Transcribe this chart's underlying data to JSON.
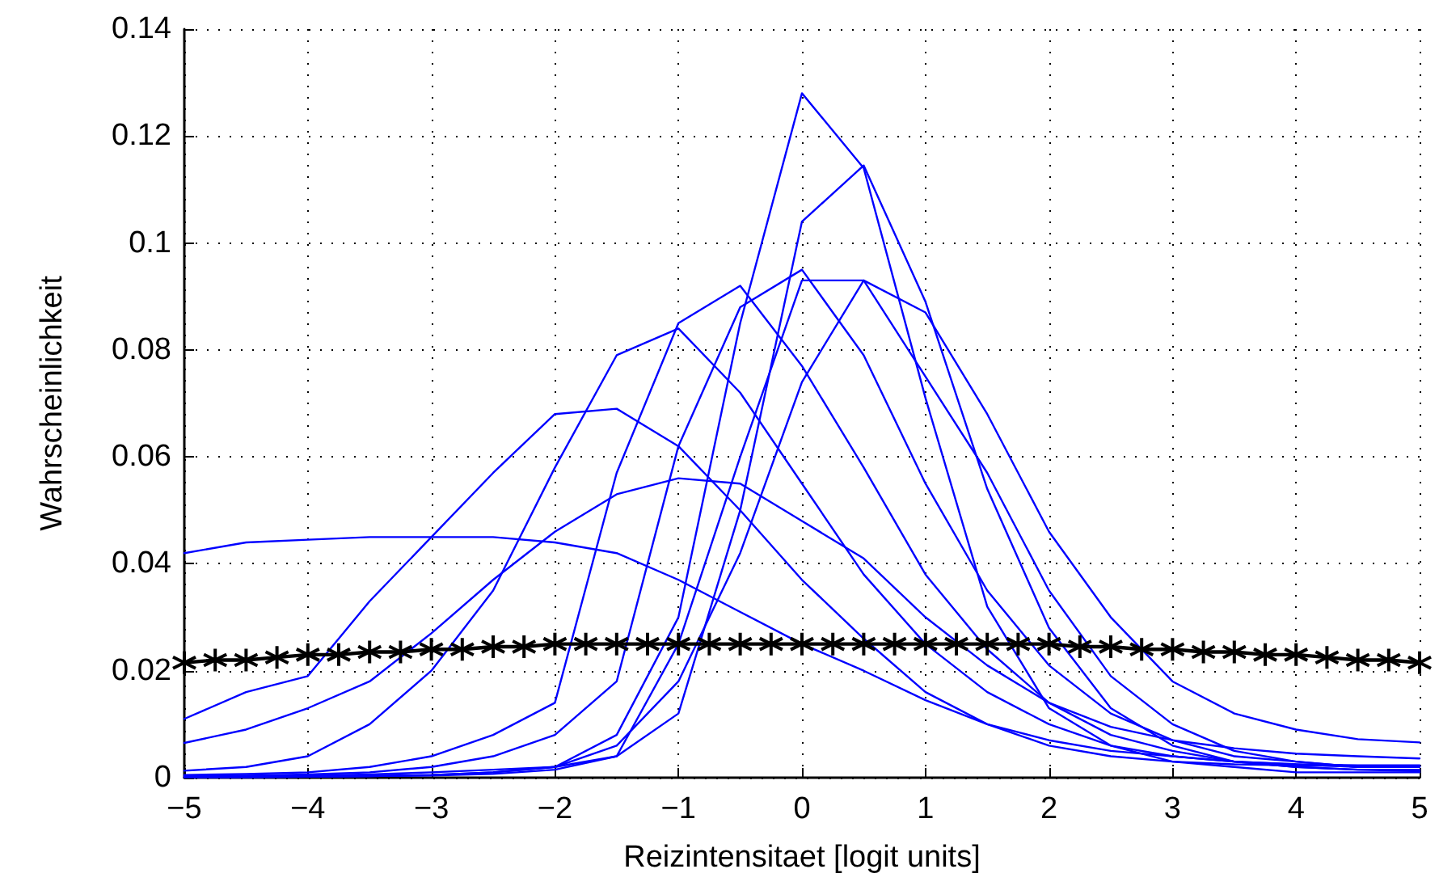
{
  "chart_data": {
    "type": "line",
    "xlabel": "Reizintensitaet [logit units]",
    "ylabel": "Wahrscheinlichkeit",
    "x": [
      -5,
      -4.5,
      -4,
      -3.5,
      -3,
      -2.5,
      -2,
      -1.5,
      -1,
      -0.5,
      0,
      0.5,
      1,
      1.5,
      2,
      2.5,
      3,
      3.5,
      4,
      4.5,
      5
    ],
    "xlim": [
      -5,
      5
    ],
    "xticks": [
      {
        "value": -5,
        "label": "−5"
      },
      {
        "value": -4,
        "label": "−4"
      },
      {
        "value": -3,
        "label": "−3"
      },
      {
        "value": -2,
        "label": "−2"
      },
      {
        "value": -1,
        "label": "−1"
      },
      0,
      1,
      2,
      3,
      4,
      5
    ],
    "ylim": [
      0,
      0.14
    ],
    "yticks": [
      0,
      0.02,
      0.04,
      0.06,
      0.08,
      0.1,
      0.12,
      0.14
    ],
    "grid": true,
    "line_style": "solid",
    "series": [
      {
        "color": "#0000ff",
        "marker": "none",
        "values": [
          0.042,
          0.044,
          0.0445,
          0.045,
          0.045,
          0.045,
          0.044,
          0.042,
          0.037,
          0.031,
          0.025,
          0.02,
          0.0145,
          0.01,
          0.007,
          0.005,
          0.004,
          0.003,
          0.0025,
          0.0023,
          0.0023
        ]
      },
      {
        "color": "#0000ff",
        "marker": "none",
        "values": [
          0.0065,
          0.009,
          0.013,
          0.018,
          0.027,
          0.037,
          0.046,
          0.053,
          0.056,
          0.055,
          0.048,
          0.041,
          0.03,
          0.021,
          0.014,
          0.0095,
          0.007,
          0.0055,
          0.0045,
          0.004,
          0.0036
        ]
      },
      {
        "color": "#0000ff",
        "marker": "none",
        "values": [
          0.011,
          0.016,
          0.019,
          0.033,
          0.045,
          0.057,
          0.068,
          0.069,
          0.062,
          0.05,
          0.037,
          0.026,
          0.016,
          0.01,
          0.006,
          0.004,
          0.003,
          0.0025,
          0.0023,
          0.0022,
          0.0022
        ]
      },
      {
        "color": "#0000ff",
        "marker": "none",
        "values": [
          0.0013,
          0.002,
          0.004,
          0.01,
          0.02,
          0.035,
          0.058,
          0.079,
          0.084,
          0.072,
          0.055,
          0.038,
          0.025,
          0.016,
          0.01,
          0.006,
          0.004,
          0.003,
          0.0025,
          0.002,
          0.002
        ]
      },
      {
        "color": "#0000ff",
        "marker": "none",
        "values": [
          0.0005,
          0.0007,
          0.001,
          0.002,
          0.004,
          0.008,
          0.014,
          0.057,
          0.085,
          0.092,
          0.077,
          0.058,
          0.038,
          0.024,
          0.014,
          0.008,
          0.005,
          0.003,
          0.002,
          0.0015,
          0.0012
        ]
      },
      {
        "color": "#0000ff",
        "marker": "none",
        "values": [
          0.0003,
          0.0004,
          0.0006,
          0.001,
          0.002,
          0.004,
          0.008,
          0.018,
          0.062,
          0.088,
          0.095,
          0.079,
          0.055,
          0.035,
          0.021,
          0.012,
          0.007,
          0.004,
          0.003,
          0.002,
          0.002
        ]
      },
      {
        "color": "#0000ff",
        "marker": "none",
        "values": [
          0.0001,
          0.0001,
          0.0002,
          0.0003,
          0.0005,
          0.001,
          0.002,
          0.008,
          0.03,
          0.085,
          0.128,
          0.114,
          0.071,
          0.032,
          0.013,
          0.006,
          0.003,
          0.002,
          0.001,
          0.001,
          0.001
        ]
      },
      {
        "color": "#0000ff",
        "marker": "none",
        "values": [
          0.0001,
          0.0001,
          0.0002,
          0.0003,
          0.0005,
          0.001,
          0.002,
          0.004,
          0.012,
          0.05,
          0.104,
          0.1145,
          0.089,
          0.054,
          0.028,
          0.013,
          0.006,
          0.003,
          0.002,
          0.0015,
          0.0015
        ]
      },
      {
        "color": "#0000ff",
        "marker": "none",
        "values": [
          0.0001,
          0.0001,
          0.0002,
          0.0003,
          0.0004,
          0.0007,
          0.0015,
          0.004,
          0.025,
          0.06,
          0.093,
          0.093,
          0.075,
          0.057,
          0.035,
          0.019,
          0.01,
          0.005,
          0.003,
          0.002,
          0.002
        ]
      },
      {
        "color": "#0000ff",
        "marker": "none",
        "values": [
          0.0003,
          0.0003,
          0.0004,
          0.0006,
          0.001,
          0.0015,
          0.002,
          0.006,
          0.018,
          0.042,
          0.074,
          0.093,
          0.087,
          0.068,
          0.046,
          0.03,
          0.018,
          0.012,
          0.009,
          0.0072,
          0.0066
        ]
      },
      {
        "color": "#000000",
        "marker": "cross",
        "x": [
          -5,
          -4.75,
          -4.5,
          -4.25,
          -4,
          -3.75,
          -3.5,
          -3.25,
          -3,
          -2.75,
          -2.5,
          -2.25,
          -2,
          -1.75,
          -1.5,
          -1.25,
          -1,
          -0.75,
          -0.5,
          -0.25,
          0,
          0.25,
          0.5,
          0.75,
          1,
          1.25,
          1.5,
          1.75,
          2,
          2.25,
          2.5,
          2.75,
          3,
          3.25,
          3.5,
          3.75,
          4,
          4.25,
          4.5,
          4.75,
          5
        ],
        "values": [
          0.0215,
          0.022,
          0.022,
          0.0225,
          0.023,
          0.023,
          0.0235,
          0.0235,
          0.024,
          0.024,
          0.0245,
          0.0245,
          0.025,
          0.025,
          0.025,
          0.025,
          0.025,
          0.025,
          0.025,
          0.025,
          0.025,
          0.025,
          0.025,
          0.025,
          0.025,
          0.025,
          0.025,
          0.025,
          0.025,
          0.0245,
          0.0245,
          0.024,
          0.024,
          0.0235,
          0.0235,
          0.023,
          0.023,
          0.0225,
          0.022,
          0.022,
          0.0215
        ]
      }
    ]
  }
}
